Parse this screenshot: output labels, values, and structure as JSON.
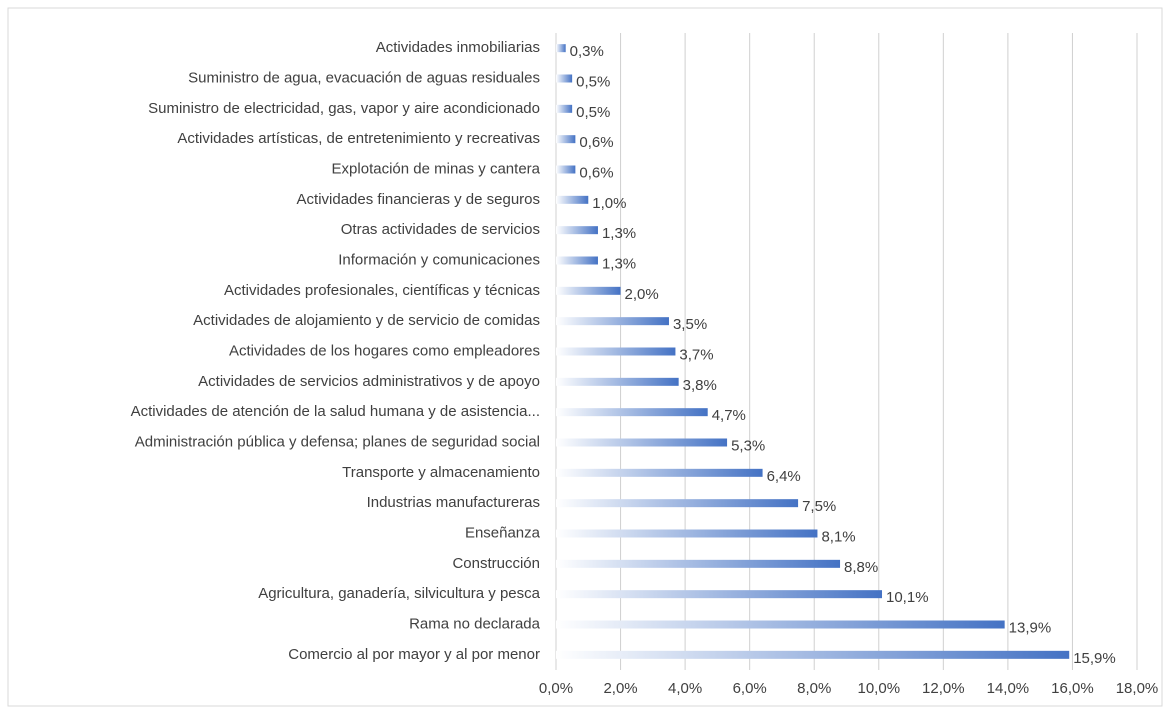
{
  "chart_data": {
    "type": "bar",
    "orientation": "horizontal",
    "categories": [
      "Actividades inmobiliarias",
      "Suministro de agua, evacuación de aguas residuales",
      "Suministro de electricidad, gas, vapor y aire acondicionado",
      "Actividades artísticas, de entretenimiento y recreativas",
      "Explotación de minas y cantera",
      "Actividades financieras y de seguros",
      "Otras actividades de servicios",
      "Información y comunicaciones",
      "Actividades profesionales, científicas y técnicas",
      "Actividades de alojamiento y de servicio de comidas",
      "Actividades de los hogares como empleadores",
      "Actividades de servicios administrativos y de apoyo",
      "Actividades de atención de la salud humana y de asistencia...",
      "Administración pública y defensa; planes de seguridad social",
      "Transporte y almacenamiento",
      "Industrias manufactureras",
      "Enseñanza",
      "Construcción",
      "Agricultura, ganadería, silvicultura y pesca",
      "Rama no declarada",
      "Comercio al por mayor y al por menor"
    ],
    "values": [
      0.3,
      0.5,
      0.5,
      0.6,
      0.6,
      1.0,
      1.3,
      1.3,
      2.0,
      3.5,
      3.7,
      3.8,
      4.7,
      5.3,
      6.4,
      7.5,
      8.1,
      8.8,
      10.1,
      13.9,
      15.9
    ],
    "value_labels": [
      "0,3%",
      "0,5%",
      "0,5%",
      "0,6%",
      "0,6%",
      "1,0%",
      "1,3%",
      "1,3%",
      "2,0%",
      "3,5%",
      "3,7%",
      "3,8%",
      "4,7%",
      "5,3%",
      "6,4%",
      "7,5%",
      "8,1%",
      "8,8%",
      "10,1%",
      "13,9%",
      "15,9%"
    ],
    "color": "#4472c4",
    "xlim": [
      0,
      18
    ],
    "xticks": [
      {
        "value": 0,
        "label": "0,0%"
      },
      {
        "value": 2,
        "label": "2,0%"
      },
      {
        "value": 4,
        "label": "4,0%"
      },
      {
        "value": 6,
        "label": "6,0%"
      },
      {
        "value": 8,
        "label": "8,0%"
      },
      {
        "value": 10,
        "label": "10,0%"
      },
      {
        "value": 12,
        "label": "12,0%"
      },
      {
        "value": 14,
        "label": "14,0%"
      },
      {
        "value": 16,
        "label": "16,0%"
      },
      {
        "value": 18,
        "label": "18,0%"
      }
    ],
    "grid": true
  }
}
